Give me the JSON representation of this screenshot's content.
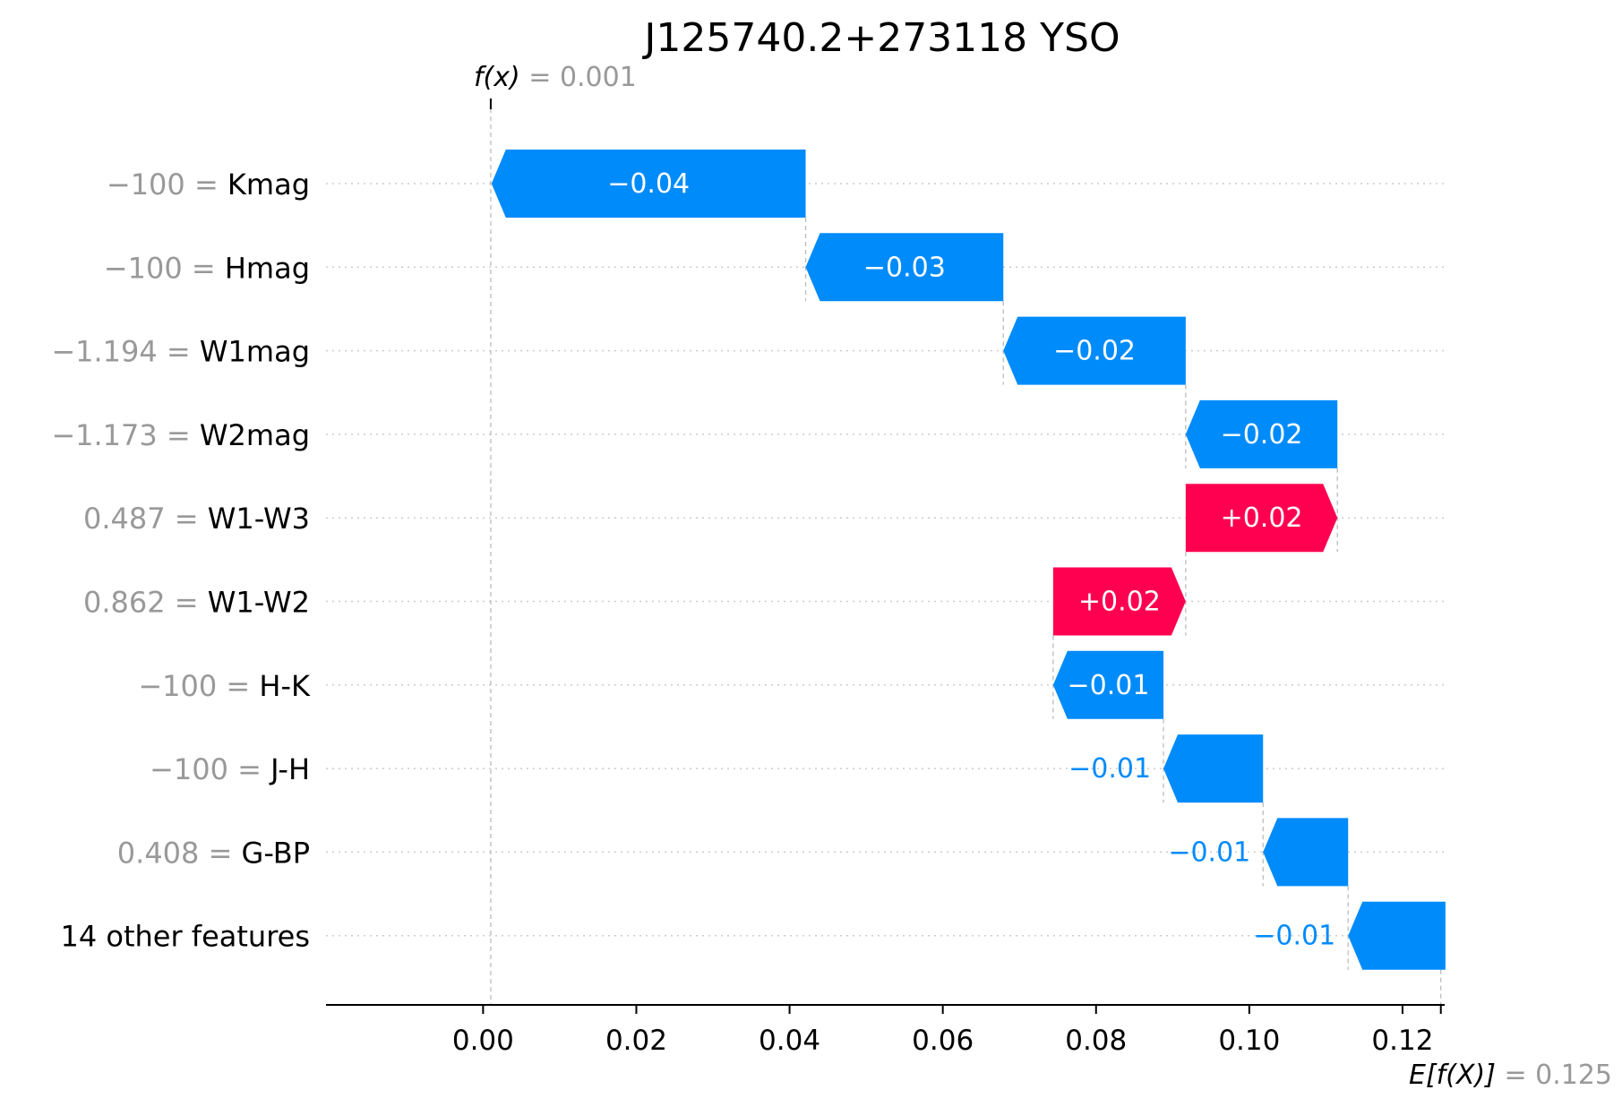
{
  "chart_data": {
    "type": "waterfall",
    "title": "J125740.2+273118 YSO",
    "fx": {
      "label": "f(x)",
      "value_text": "= 0.001",
      "value": 0.001
    },
    "efx": {
      "label": "E[f(X)]",
      "value_text": "= 0.125",
      "value": 0.125
    },
    "xlim": [
      -0.0205,
      0.1255
    ],
    "xticks": [
      0.0,
      0.02,
      0.04,
      0.06,
      0.08,
      0.1,
      0.12
    ],
    "xtick_labels": [
      "0.00",
      "0.02",
      "0.04",
      "0.06",
      "0.08",
      "0.10",
      "0.12"
    ],
    "colors": {
      "negative": "#008bfb",
      "positive": "#ff0051"
    },
    "features": [
      {
        "value": "−100",
        "name": "Kmag",
        "start": 0.0421,
        "end": 0.0011,
        "label": "−0.04"
      },
      {
        "value": "−100",
        "name": "Hmag",
        "start": 0.0679,
        "end": 0.0421,
        "label": "−0.03"
      },
      {
        "value": "−1.194",
        "name": "W1mag",
        "start": 0.0917,
        "end": 0.0679,
        "label": "−0.02"
      },
      {
        "value": "−1.173",
        "name": "W2mag",
        "start": 0.1115,
        "end": 0.0917,
        "label": "−0.02"
      },
      {
        "value": "0.487",
        "name": "W1-W3",
        "start": 0.0917,
        "end": 0.1115,
        "label": "+0.02"
      },
      {
        "value": "0.862",
        "name": "W1-W2",
        "start": 0.0744,
        "end": 0.0917,
        "label": "+0.02"
      },
      {
        "value": "−100",
        "name": "H-K",
        "start": 0.0888,
        "end": 0.0744,
        "label": "−0.01"
      },
      {
        "value": "−100",
        "name": "J-H",
        "start": 0.1018,
        "end": 0.0888,
        "label": "−0.01"
      },
      {
        "value": "0.408",
        "name": "G-BP",
        "start": 0.1129,
        "end": 0.1018,
        "label": "−0.01"
      },
      {
        "value": "",
        "name": "14 other features",
        "start": 0.1256,
        "end": 0.1129,
        "label": "−0.01"
      }
    ]
  }
}
